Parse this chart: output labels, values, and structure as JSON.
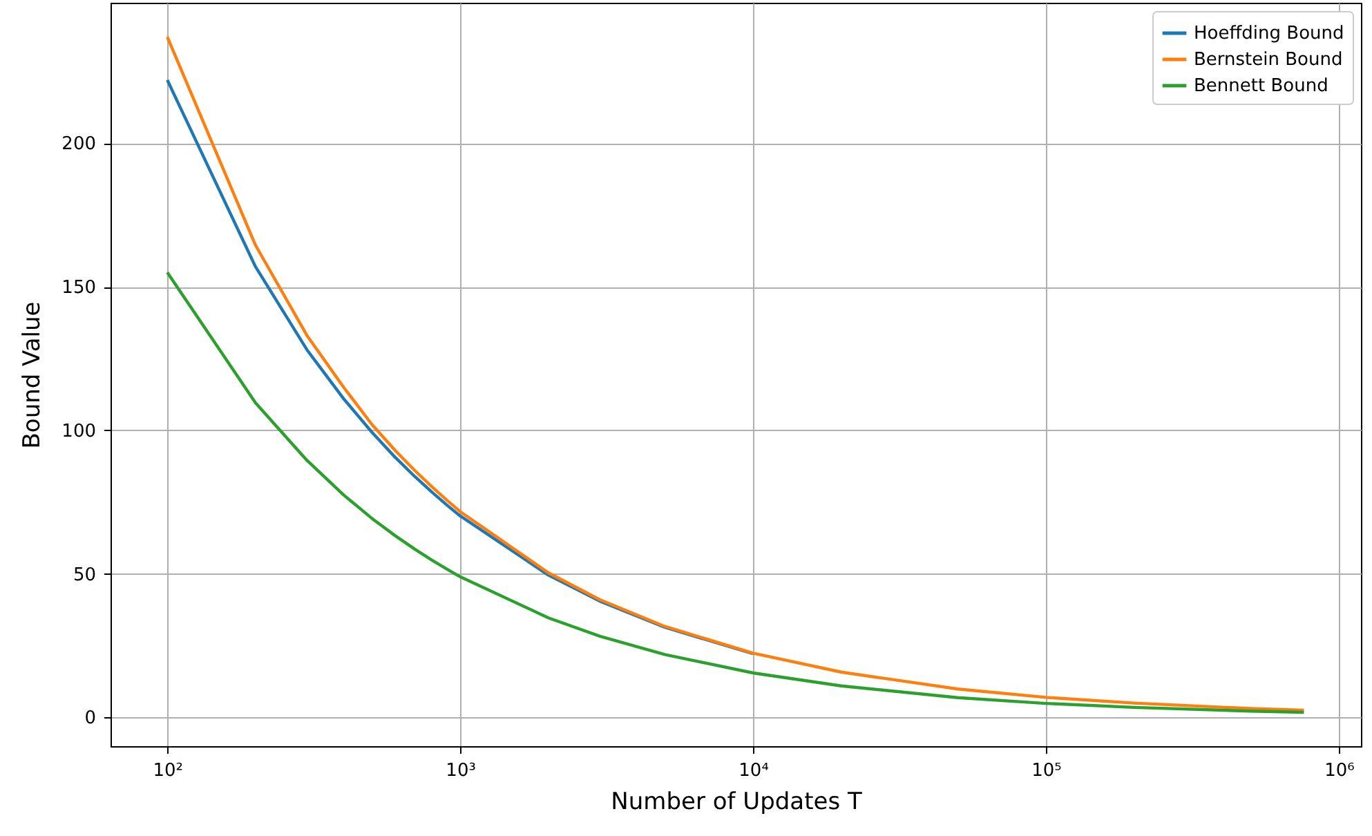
{
  "chart_data": {
    "type": "line",
    "xlabel": "Number of Updates T",
    "ylabel": "Bound Value",
    "x": [
      100,
      200,
      300,
      400,
      500,
      600,
      700,
      800,
      900,
      1000,
      2000,
      3000,
      5000,
      10000,
      20000,
      50000,
      100000,
      200000,
      500000,
      760000
    ],
    "series": [
      {
        "name": "Hoeffding Bound",
        "color": "#1f77b4",
        "values": [
          222,
          157,
          128,
          111,
          99.3,
          90.6,
          83.9,
          78.5,
          74,
          70.2,
          49.6,
          40.5,
          31.4,
          22.2,
          null,
          null,
          null,
          null,
          null,
          null
        ]
      },
      {
        "name": "Bernstein Bound",
        "color": "#ff7f0e",
        "values": [
          237,
          164.5,
          133,
          115,
          102,
          93,
          86,
          80.4,
          75.7,
          71.7,
          50.4,
          41,
          31.7,
          22.4,
          15.8,
          9.9,
          7.0,
          5.0,
          3.1,
          2.5
        ]
      },
      {
        "name": "Bennett Bound",
        "color": "#2ca02c",
        "values": [
          155,
          109.6,
          89.5,
          77.5,
          69.3,
          63.3,
          58.6,
          54.8,
          51.7,
          49,
          34.7,
          28.3,
          21.9,
          15.5,
          11,
          6.9,
          4.9,
          3.5,
          2.2,
          1.8
        ]
      }
    ],
    "log": "x",
    "xlim": [
      64,
      1190000
    ],
    "xticks": [
      {
        "value": 100,
        "label": "10²"
      },
      {
        "value": 1000,
        "label": "10³"
      },
      {
        "value": 10000,
        "label": "10⁴"
      },
      {
        "value": 100000,
        "label": "10⁵"
      },
      {
        "value": 1000000,
        "label": "10⁶"
      }
    ],
    "ylim": [
      -10,
      248.9
    ],
    "yticks": [
      0,
      50,
      100,
      150,
      200
    ],
    "grid": true,
    "legend": "top right",
    "line_style": "solid",
    "marker": "none"
  }
}
